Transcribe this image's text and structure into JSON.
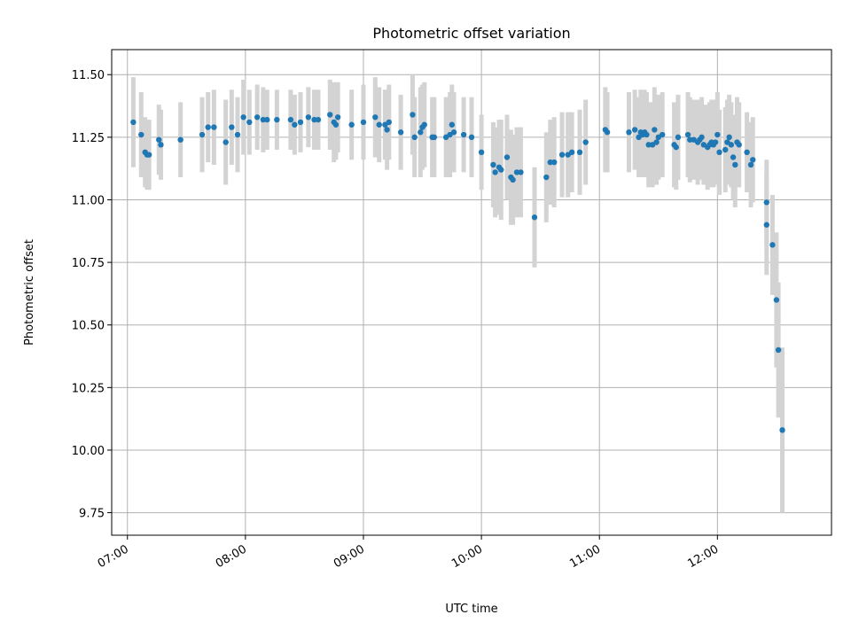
{
  "chart_data": {
    "type": "scatter",
    "title": "Photometric offset variation",
    "xlabel": "UTC time",
    "ylabel": "Photometric offset",
    "x_axis_type": "time",
    "xlim": [
      "06:52",
      "12:58"
    ],
    "ylim": [
      9.66,
      11.6
    ],
    "xticks": [
      "07:00",
      "08:00",
      "09:00",
      "10:00",
      "11:00",
      "12:00"
    ],
    "yticks": [
      9.75,
      10.0,
      10.25,
      10.5,
      10.75,
      11.0,
      11.25,
      11.5
    ],
    "ytick_labels": [
      "9.75",
      "10.00",
      "10.25",
      "10.50",
      "10.75",
      "11.00",
      "11.25",
      "11.50"
    ],
    "grid": true,
    "legend": "none",
    "colors": {
      "point": "#1f77b4",
      "error_bar": "#d3d3d3",
      "grid": "#b0b0b0"
    },
    "points": [
      {
        "x": "07:03",
        "y": 11.31,
        "err": 0.18
      },
      {
        "x": "07:07",
        "y": 11.26,
        "err": 0.17
      },
      {
        "x": "07:09",
        "y": 11.19,
        "err": 0.14
      },
      {
        "x": "07:10",
        "y": 11.18,
        "err": 0.14
      },
      {
        "x": "07:11",
        "y": 11.18,
        "err": 0.14
      },
      {
        "x": "07:16",
        "y": 11.24,
        "err": 0.14
      },
      {
        "x": "07:17",
        "y": 11.22,
        "err": 0.14
      },
      {
        "x": "07:27",
        "y": 11.24,
        "err": 0.15
      },
      {
        "x": "07:38",
        "y": 11.26,
        "err": 0.15
      },
      {
        "x": "07:41",
        "y": 11.29,
        "err": 0.14
      },
      {
        "x": "07:44",
        "y": 11.29,
        "err": 0.15
      },
      {
        "x": "07:50",
        "y": 11.23,
        "err": 0.17
      },
      {
        "x": "07:53",
        "y": 11.29,
        "err": 0.15
      },
      {
        "x": "07:56",
        "y": 11.26,
        "err": 0.15
      },
      {
        "x": "07:59",
        "y": 11.33,
        "err": 0.15
      },
      {
        "x": "08:02",
        "y": 11.31,
        "err": 0.13
      },
      {
        "x": "08:06",
        "y": 11.33,
        "err": 0.13
      },
      {
        "x": "08:09",
        "y": 11.32,
        "err": 0.13
      },
      {
        "x": "08:11",
        "y": 11.32,
        "err": 0.12
      },
      {
        "x": "08:16",
        "y": 11.32,
        "err": 0.12
      },
      {
        "x": "08:23",
        "y": 11.32,
        "err": 0.12
      },
      {
        "x": "08:25",
        "y": 11.3,
        "err": 0.12
      },
      {
        "x": "08:28",
        "y": 11.31,
        "err": 0.12
      },
      {
        "x": "08:32",
        "y": 11.33,
        "err": 0.12
      },
      {
        "x": "08:35",
        "y": 11.32,
        "err": 0.12
      },
      {
        "x": "08:37",
        "y": 11.32,
        "err": 0.12
      },
      {
        "x": "08:43",
        "y": 11.34,
        "err": 0.14
      },
      {
        "x": "08:45",
        "y": 11.31,
        "err": 0.16
      },
      {
        "x": "08:46",
        "y": 11.3,
        "err": 0.14
      },
      {
        "x": "08:47",
        "y": 11.33,
        "err": 0.14
      },
      {
        "x": "08:54",
        "y": 11.3,
        "err": 0.14
      },
      {
        "x": "09:00",
        "y": 11.31,
        "err": 0.15
      },
      {
        "x": "09:06",
        "y": 11.33,
        "err": 0.16
      },
      {
        "x": "09:08",
        "y": 11.3,
        "err": 0.15
      },
      {
        "x": "09:11",
        "y": 11.3,
        "err": 0.14
      },
      {
        "x": "09:12",
        "y": 11.28,
        "err": 0.16
      },
      {
        "x": "09:13",
        "y": 11.31,
        "err": 0.15
      },
      {
        "x": "09:19",
        "y": 11.27,
        "err": 0.15
      },
      {
        "x": "09:25",
        "y": 11.34,
        "err": 0.16
      },
      {
        "x": "09:26",
        "y": 11.25,
        "err": 0.16
      },
      {
        "x": "09:29",
        "y": 11.27,
        "err": 0.18
      },
      {
        "x": "09:30",
        "y": 11.29,
        "err": 0.17
      },
      {
        "x": "09:31",
        "y": 11.3,
        "err": 0.17
      },
      {
        "x": "09:35",
        "y": 11.25,
        "err": 0.16
      },
      {
        "x": "09:36",
        "y": 11.25,
        "err": 0.16
      },
      {
        "x": "09:42",
        "y": 11.25,
        "err": 0.16
      },
      {
        "x": "09:44",
        "y": 11.26,
        "err": 0.17
      },
      {
        "x": "09:45",
        "y": 11.3,
        "err": 0.16
      },
      {
        "x": "09:46",
        "y": 11.27,
        "err": 0.16
      },
      {
        "x": "09:51",
        "y": 11.26,
        "err": 0.15
      },
      {
        "x": "09:55",
        "y": 11.25,
        "err": 0.16
      },
      {
        "x": "10:00",
        "y": 11.19,
        "err": 0.15
      },
      {
        "x": "10:06",
        "y": 11.14,
        "err": 0.17
      },
      {
        "x": "10:07",
        "y": 11.11,
        "err": 0.18
      },
      {
        "x": "10:09",
        "y": 11.13,
        "err": 0.19
      },
      {
        "x": "10:10",
        "y": 11.12,
        "err": 0.2
      },
      {
        "x": "10:13",
        "y": 11.17,
        "err": 0.17
      },
      {
        "x": "10:15",
        "y": 11.09,
        "err": 0.19
      },
      {
        "x": "10:16",
        "y": 11.08,
        "err": 0.18
      },
      {
        "x": "10:18",
        "y": 11.11,
        "err": 0.18
      },
      {
        "x": "10:20",
        "y": 11.11,
        "err": 0.18
      },
      {
        "x": "10:27",
        "y": 10.93,
        "err": 0.2
      },
      {
        "x": "10:33",
        "y": 11.09,
        "err": 0.18
      },
      {
        "x": "10:35",
        "y": 11.15,
        "err": 0.17
      },
      {
        "x": "10:37",
        "y": 11.15,
        "err": 0.18
      },
      {
        "x": "10:41",
        "y": 11.18,
        "err": 0.17
      },
      {
        "x": "10:44",
        "y": 11.18,
        "err": 0.17
      },
      {
        "x": "10:46",
        "y": 11.19,
        "err": 0.16
      },
      {
        "x": "10:50",
        "y": 11.19,
        "err": 0.17
      },
      {
        "x": "10:53",
        "y": 11.23,
        "err": 0.17
      },
      {
        "x": "11:03",
        "y": 11.28,
        "err": 0.17
      },
      {
        "x": "11:04",
        "y": 11.27,
        "err": 0.16
      },
      {
        "x": "11:15",
        "y": 11.27,
        "err": 0.16
      },
      {
        "x": "11:18",
        "y": 11.28,
        "err": 0.16
      },
      {
        "x": "11:20",
        "y": 11.25,
        "err": 0.16
      },
      {
        "x": "11:21",
        "y": 11.27,
        "err": 0.17
      },
      {
        "x": "11:22",
        "y": 11.26,
        "err": 0.17
      },
      {
        "x": "11:23",
        "y": 11.27,
        "err": 0.17
      },
      {
        "x": "11:24",
        "y": 11.26,
        "err": 0.17
      },
      {
        "x": "11:25",
        "y": 11.22,
        "err": 0.17
      },
      {
        "x": "11:27",
        "y": 11.22,
        "err": 0.17
      },
      {
        "x": "11:28",
        "y": 11.28,
        "err": 0.17
      },
      {
        "x": "11:29",
        "y": 11.23,
        "err": 0.17
      },
      {
        "x": "11:30",
        "y": 11.25,
        "err": 0.17
      },
      {
        "x": "11:32",
        "y": 11.26,
        "err": 0.17
      },
      {
        "x": "11:38",
        "y": 11.22,
        "err": 0.17
      },
      {
        "x": "11:39",
        "y": 11.21,
        "err": 0.17
      },
      {
        "x": "11:40",
        "y": 11.25,
        "err": 0.17
      },
      {
        "x": "11:45",
        "y": 11.26,
        "err": 0.17
      },
      {
        "x": "11:46",
        "y": 11.24,
        "err": 0.17
      },
      {
        "x": "11:48",
        "y": 11.24,
        "err": 0.16
      },
      {
        "x": "11:50",
        "y": 11.23,
        "err": 0.17
      },
      {
        "x": "11:51",
        "y": 11.24,
        "err": 0.16
      },
      {
        "x": "11:52",
        "y": 11.25,
        "err": 0.16
      },
      {
        "x": "11:53",
        "y": 11.22,
        "err": 0.16
      },
      {
        "x": "11:55",
        "y": 11.21,
        "err": 0.17
      },
      {
        "x": "11:56",
        "y": 11.22,
        "err": 0.17
      },
      {
        "x": "11:57",
        "y": 11.23,
        "err": 0.17
      },
      {
        "x": "11:58",
        "y": 11.22,
        "err": 0.17
      },
      {
        "x": "11:59",
        "y": 11.23,
        "err": 0.17
      },
      {
        "x": "12:00",
        "y": 11.26,
        "err": 0.17
      },
      {
        "x": "12:01",
        "y": 11.19,
        "err": 0.17
      },
      {
        "x": "12:04",
        "y": 11.2,
        "err": 0.17
      },
      {
        "x": "12:05",
        "y": 11.23,
        "err": 0.17
      },
      {
        "x": "12:06",
        "y": 11.25,
        "err": 0.17
      },
      {
        "x": "12:07",
        "y": 11.22,
        "err": 0.17
      },
      {
        "x": "12:08",
        "y": 11.17,
        "err": 0.17
      },
      {
        "x": "12:09",
        "y": 11.14,
        "err": 0.17
      },
      {
        "x": "12:10",
        "y": 11.23,
        "err": 0.18
      },
      {
        "x": "12:11",
        "y": 11.22,
        "err": 0.17
      },
      {
        "x": "12:15",
        "y": 11.19,
        "err": 0.16
      },
      {
        "x": "12:17",
        "y": 11.14,
        "err": 0.17
      },
      {
        "x": "12:18",
        "y": 11.16,
        "err": 0.17
      },
      {
        "x": "12:25",
        "y": 10.99,
        "err": 0.17
      },
      {
        "x": "12:25",
        "y": 10.9,
        "err": 0.2
      },
      {
        "x": "12:28",
        "y": 10.82,
        "err": 0.2
      },
      {
        "x": "12:30",
        "y": 10.6,
        "err": 0.27
      },
      {
        "x": "12:31",
        "y": 10.4,
        "err": 0.27
      },
      {
        "x": "12:33",
        "y": 10.08,
        "err": 0.33
      }
    ]
  }
}
